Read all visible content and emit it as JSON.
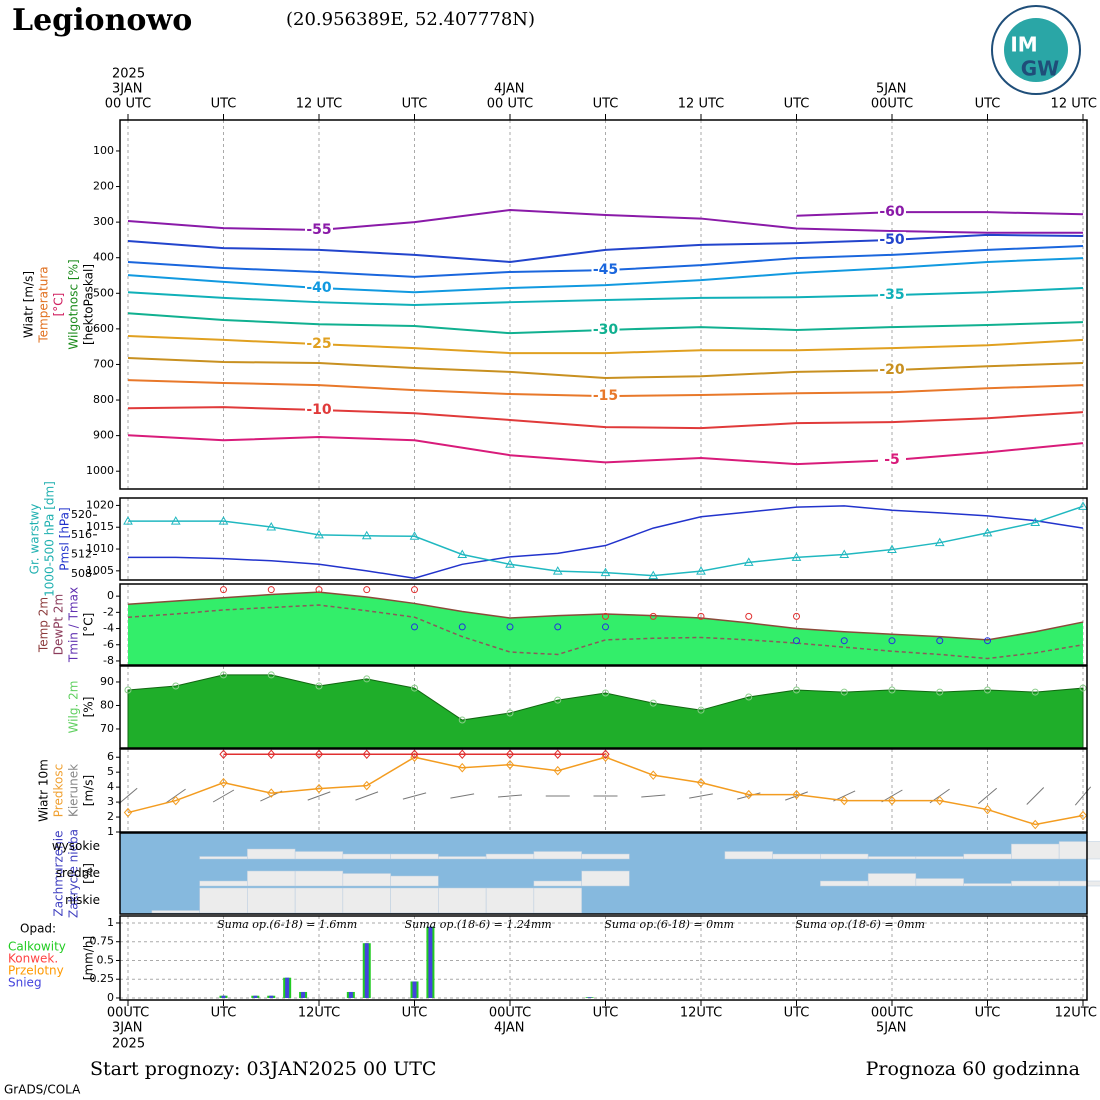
{
  "header": {
    "title": "Legionowo",
    "coords": "(20.956389E, 52.407778N)",
    "logo": [
      "IM",
      "GW"
    ]
  },
  "footer": {
    "start": "Start prognozy: 03JAN2025 00 UTC",
    "range": "Prognoza 60 godzinna",
    "credit": "GrADS/COLA"
  },
  "chart_data": [
    {
      "type": "contour",
      "ylabels": [
        {
          "text": "Wiatr [m/s]",
          "color": "#000000"
        },
        {
          "text": "Temperatura",
          "color": "#e07020"
        },
        {
          "text": "[°C]",
          "color": "#d02060"
        },
        {
          "text": "Wilgotnosc [%]",
          "color": "#1a8a1a"
        },
        {
          "text": "[hektoPaskal]",
          "color": "#000000"
        }
      ],
      "ylim": [
        13,
        1050
      ],
      "y_inverted": true,
      "yticks": [
        100,
        200,
        300,
        400,
        500,
        600,
        700,
        800,
        900,
        1000
      ],
      "xlim": [
        0,
        60
      ],
      "xticks": [
        {
          "value": 0,
          "label": "00 UTC"
        },
        {
          "value": 6,
          "label": "UTC"
        },
        {
          "value": 12,
          "label": "12 UTC"
        },
        {
          "value": 18,
          "label": "UTC"
        },
        {
          "value": 24,
          "label": "00 UTC"
        },
        {
          "value": 30,
          "label": "UTC"
        },
        {
          "value": 36,
          "label": "12 UTC"
        },
        {
          "value": 42,
          "label": "UTC"
        },
        {
          "value": 48,
          "label": "00UTC"
        },
        {
          "value": 54,
          "label": "UTC"
        },
        {
          "value": 60,
          "label": "12 UTC"
        }
      ],
      "date_labels": [
        {
          "value": 0,
          "label": "2025"
        },
        {
          "value": 0,
          "label": "3JAN"
        },
        {
          "value": 24,
          "label": "4JAN"
        },
        {
          "value": 48,
          "label": "5JAN"
        }
      ],
      "x": [
        0,
        6,
        12,
        18,
        24,
        30,
        36,
        42,
        48,
        54,
        60
      ],
      "series": [
        {
          "name": "-60",
          "color": "#8a1aa8",
          "values": [
            null,
            null,
            null,
            null,
            null,
            null,
            null,
            282,
            272,
            272,
            278
          ]
        },
        {
          "name": "-55",
          "color": "#8a1aa8",
          "values": [
            297,
            317,
            322,
            300,
            266,
            280,
            290,
            318,
            325,
            330,
            330
          ]
        },
        {
          "name": "-50",
          "color": "#2244cc",
          "values": [
            353,
            373,
            378,
            392,
            412,
            378,
            364,
            359,
            350,
            336,
            339
          ]
        },
        {
          "name": "-45",
          "color": "#1a66dd",
          "values": [
            412,
            429,
            440,
            454,
            440,
            435,
            421,
            401,
            392,
            378,
            367
          ]
        },
        {
          "name": "-40",
          "color": "#1199e0",
          "values": [
            449,
            468,
            485,
            497,
            485,
            477,
            463,
            443,
            429,
            412,
            401
          ]
        },
        {
          "name": "-35",
          "color": "#10b0b8",
          "values": [
            497,
            513,
            525,
            533,
            525,
            519,
            513,
            511,
            505,
            497,
            485
          ]
        },
        {
          "name": "-30",
          "color": "#10b090",
          "values": [
            556,
            575,
            587,
            592,
            612,
            603,
            595,
            603,
            595,
            589,
            581
          ]
        },
        {
          "name": "-25",
          "color": "#e0a020",
          "values": [
            620,
            631,
            643,
            654,
            668,
            668,
            660,
            660,
            654,
            646,
            631
          ]
        },
        {
          "name": "-20",
          "color": "#c89020",
          "values": [
            682,
            693,
            696,
            710,
            721,
            738,
            733,
            721,
            716,
            705,
            696
          ]
        },
        {
          "name": "-15",
          "color": "#e8782a",
          "values": [
            744,
            752,
            758,
            772,
            783,
            789,
            786,
            781,
            778,
            767,
            758
          ]
        },
        {
          "name": "-10",
          "color": "#e03a3a",
          "values": [
            823,
            820,
            828,
            837,
            856,
            876,
            879,
            865,
            862,
            851,
            834
          ]
        },
        {
          "name": "-5",
          "color": "#d81b7a",
          "values": [
            899,
            913,
            904,
            913,
            955,
            975,
            963,
            980,
            969,
            947,
            921
          ]
        }
      ]
    },
    {
      "type": "line",
      "ylabels": [
        {
          "text": "Gr. warstwy",
          "color": "#20b0b0"
        },
        {
          "text": "1000-500 hPa [dm]",
          "color": "#20b0b0"
        },
        {
          "text": "Pmsl [hPa]",
          "color": "#2233cc"
        }
      ],
      "ylim": [
        1002.9,
        1021.7
      ],
      "yticks": [
        1005,
        1010,
        1015,
        1020
      ],
      "y2lim": [
        506.8,
        523.5
      ],
      "y2ticks": [
        508,
        512,
        516,
        520
      ],
      "x": [
        0,
        3,
        6,
        9,
        12,
        15,
        18,
        21,
        24,
        27,
        30,
        33,
        36,
        39,
        42,
        45,
        48,
        51,
        54,
        57,
        60
      ],
      "series": [
        {
          "color": "#2233cc",
          "values": [
            1008.1,
            1008.1,
            1007.8,
            1007.3,
            1006.5,
            1005,
            1003.3,
            1006.5,
            1008.2,
            1009,
            1010.8,
            1014.8,
            1017.4,
            1018.5,
            1019.6,
            1019.9,
            1018.9,
            1018.3,
            1017.6,
            1016.5,
            1014.8
          ]
        },
        {
          "color": "#20b8c0",
          "axis": "y2",
          "marker": "triangle",
          "values": [
            518.8,
            518.8,
            518.8,
            517.6,
            516.0,
            515.8,
            515.7,
            512,
            510,
            508.6,
            508.3,
            507.7,
            508.6,
            510.4,
            511.4,
            512,
            513,
            514.4,
            516.4,
            518.5,
            521.8
          ]
        }
      ]
    },
    {
      "type": "line",
      "ylabels": [
        {
          "text": "Temp 2m",
          "color": "#8b3a3a"
        },
        {
          "text": "DewPt 2m",
          "color": "#8b3a5a"
        },
        {
          "text": "Tmin / Tmax",
          "color": "#6030b0"
        },
        {
          "text": "[°C]",
          "color": "#000000"
        }
      ],
      "ylim": [
        -8.5,
        1.5
      ],
      "yticks": [
        0,
        -2,
        -4,
        -6,
        -8
      ],
      "x": [
        0,
        3,
        6,
        9,
        12,
        15,
        18,
        21,
        24,
        27,
        30,
        33,
        36,
        39,
        42,
        45,
        48,
        51,
        54,
        57,
        60
      ],
      "series": [
        {
          "color": "#8b4a3a",
          "fill": "#33ee6a",
          "values": [
            -1.0,
            -0.6,
            -0.2,
            0.2,
            0.5,
            -0.1,
            -0.9,
            -1.9,
            -2.7,
            -2.4,
            -2.2,
            -2.4,
            -2.7,
            -3.3,
            -4.0,
            -4.4,
            -4.7,
            -5.0,
            -5.4,
            -4.4,
            -3.2
          ]
        },
        {
          "color": "#8b5a5a",
          "dash": true,
          "values": [
            -2.6,
            -2.2,
            -1.7,
            -1.4,
            -1.1,
            -1.8,
            -2.6,
            -5.0,
            -6.9,
            -7.2,
            -5.4,
            -5.2,
            -5.1,
            -5.4,
            -5.8,
            -6.3,
            -6.8,
            -7.2,
            -7.7,
            -7.0,
            -6.0
          ]
        },
        {
          "color": "#e03030",
          "marker": "circle",
          "line": false,
          "values": [
            null,
            null,
            0.8,
            0.8,
            0.8,
            0.8,
            0.8,
            null,
            null,
            null,
            -2.5,
            -2.5,
            -2.5,
            -2.5,
            -2.5,
            null,
            null,
            null,
            null,
            null,
            null
          ]
        },
        {
          "color": "#2030e0",
          "marker": "circle",
          "line": false,
          "values": [
            null,
            null,
            null,
            null,
            null,
            null,
            -3.8,
            -3.8,
            -3.8,
            -3.8,
            -3.8,
            null,
            null,
            null,
            -5.5,
            -5.5,
            -5.5,
            -5.5,
            -5.5,
            null,
            null
          ]
        }
      ]
    },
    {
      "type": "area",
      "ylabels": [
        {
          "text": "Wilg. 2m",
          "color": "#60d060"
        },
        {
          "text": "[%]",
          "color": "#000000"
        }
      ],
      "ylim": [
        61.9,
        96.8
      ],
      "yticks": [
        70,
        80,
        90
      ],
      "x": [
        0,
        3,
        6,
        9,
        12,
        15,
        18,
        21,
        24,
        27,
        30,
        33,
        36,
        39,
        42,
        45,
        48,
        51,
        54,
        57,
        60
      ],
      "series": [
        {
          "color": "#1fae2a",
          "values": [
            86.6,
            88.3,
            93,
            93,
            88.3,
            91.3,
            87.4,
            73.8,
            76.8,
            82.3,
            85.3,
            81,
            78,
            83.6,
            86.6,
            85.7,
            86.6,
            85.7,
            86.6,
            85.7,
            87.4
          ]
        }
      ]
    },
    {
      "type": "wind",
      "ylabels": [
        {
          "text": "Wiatr 10m",
          "color": "#000000"
        },
        {
          "text": "Predkosc",
          "color": "#f0a030"
        },
        {
          "text": "Kierunek",
          "color": "#888888"
        },
        {
          "text": "[m/s]",
          "color": "#000000"
        }
      ],
      "ylim": [
        1,
        6.55
      ],
      "yticks": [
        1,
        2,
        3,
        4,
        5,
        6
      ],
      "x": [
        0,
        3,
        6,
        9,
        12,
        15,
        18,
        21,
        24,
        27,
        30,
        33,
        36,
        39,
        42,
        45,
        48,
        51,
        54,
        57,
        60
      ],
      "series": [
        {
          "color": "#f39c20",
          "marker": "diamond",
          "values": [
            2.3,
            3.1,
            4.3,
            3.6,
            3.9,
            4.1,
            6.0,
            5.3,
            5.5,
            5.1,
            6.0,
            4.8,
            4.3,
            3.5,
            3.5,
            3.1,
            3.1,
            3.1,
            2.5,
            1.5,
            2.1
          ]
        },
        {
          "color": "#e03030",
          "marker": "diamond",
          "values": [
            null,
            null,
            6.2,
            6.2,
            6.2,
            6.2,
            6.2,
            6.2,
            6.2,
            6.2,
            6.2,
            null,
            null,
            null,
            null,
            null,
            null,
            null,
            null,
            null,
            null
          ]
        }
      ],
      "directions": [
        230,
        235,
        240,
        245,
        250,
        250,
        255,
        260,
        265,
        270,
        270,
        265,
        260,
        255,
        250,
        245,
        240,
        235,
        230,
        225,
        220
      ]
    },
    {
      "type": "cloud",
      "ylabels": [
        {
          "text": "Zachmurzenie",
          "color": "#4040c0"
        },
        {
          "text": "Zakrycie nieba",
          "color": "#4040c0"
        },
        {
          "text": "[%]",
          "color": "#000000"
        }
      ],
      "background": "#86b9de",
      "color": "#ececec",
      "x": [
        0,
        3,
        6,
        9,
        12,
        15,
        18,
        21,
        24,
        27,
        30,
        33,
        36,
        39,
        42,
        45,
        48,
        51,
        54,
        57,
        60
      ],
      "series": [
        {
          "name": "wysokie",
          "values": [
            0,
            0,
            10,
            40,
            30,
            20,
            20,
            10,
            20,
            30,
            20,
            0,
            0,
            30,
            20,
            20,
            10,
            10,
            20,
            60,
            70
          ]
        },
        {
          "name": "srednie",
          "values": [
            0,
            0,
            20,
            60,
            60,
            50,
            40,
            0,
            0,
            20,
            60,
            0,
            0,
            0,
            0,
            20,
            50,
            30,
            10,
            20,
            20
          ]
        },
        {
          "name": "niskie",
          "values": [
            0,
            10,
            100,
            100,
            100,
            100,
            100,
            100,
            100,
            100,
            0,
            0,
            0,
            0,
            0,
            0,
            0,
            0,
            0,
            0,
            0
          ]
        }
      ]
    },
    {
      "type": "bar",
      "ylabels": [
        {
          "text": "[mm/h]",
          "color": "#000000"
        }
      ],
      "ylim": [
        -0.027,
        1.093
      ],
      "yticks": [
        0,
        0.25,
        0.5,
        0.75,
        1
      ],
      "grid": true,
      "xlim": [
        0,
        60
      ],
      "xticks": [
        {
          "value": 0,
          "label": "00UTC"
        },
        {
          "value": 6,
          "label": "UTC"
        },
        {
          "value": 12,
          "label": "12UTC"
        },
        {
          "value": 18,
          "label": "UTC"
        },
        {
          "value": 24,
          "label": "00UTC"
        },
        {
          "value": 30,
          "label": "UTC"
        },
        {
          "value": 36,
          "label": "12UTC"
        },
        {
          "value": 42,
          "label": "UTC"
        },
        {
          "value": 48,
          "label": "00UTC"
        },
        {
          "value": 54,
          "label": "UTC"
        },
        {
          "value": 60,
          "label": "12UTC"
        }
      ],
      "date_labels": [
        {
          "value": 0,
          "label": "3JAN"
        },
        {
          "value": 0,
          "label": "2025"
        },
        {
          "value": 24,
          "label": "4JAN"
        },
        {
          "value": 48,
          "label": "5JAN"
        }
      ],
      "legend_title": "Opad:",
      "annotations": [
        "Suma op.(6-18) = 1.6mm",
        "Suma op.(18-6) = 1.24mm",
        "Suma op.(6-18) = 0mm",
        "Suma op.(18-6) = 0mm"
      ],
      "x": [
        6,
        8,
        9,
        10,
        11,
        14,
        15,
        18,
        19,
        29
      ],
      "series": [
        {
          "name": "Calkowity",
          "color": "#22cc22",
          "values": [
            0.03,
            0.03,
            0.03,
            0.27,
            0.08,
            0.08,
            0.73,
            0.22,
            0.95,
            0.01
          ]
        },
        {
          "name": "Konwek.",
          "color": "#ff4444",
          "values": [
            0,
            0,
            0,
            0,
            0,
            0,
            0,
            0,
            0,
            0
          ]
        },
        {
          "name": "Przelotny",
          "color": "#ff9900",
          "values": [
            0,
            0,
            0,
            0,
            0,
            0,
            0,
            0,
            0,
            0
          ]
        },
        {
          "name": "Snieg",
          "color": "#4444dd",
          "values": [
            0.03,
            0.03,
            0.03,
            0.27,
            0.08,
            0.08,
            0.73,
            0.22,
            0.95,
            0.01
          ]
        }
      ]
    }
  ]
}
